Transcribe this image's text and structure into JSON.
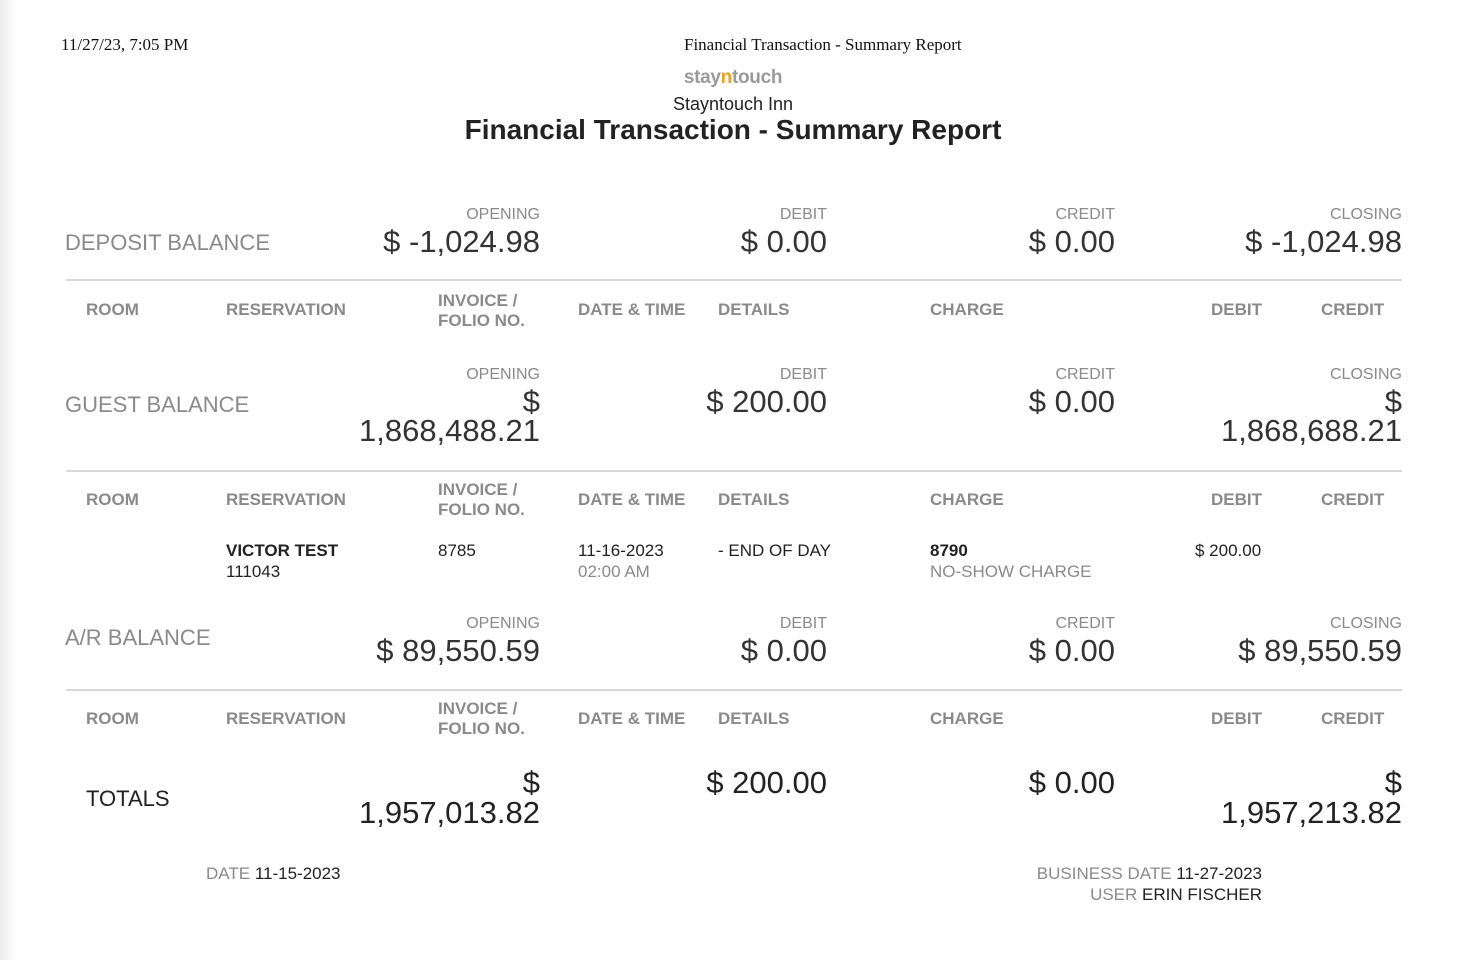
{
  "print_header": {
    "datetime": "11/27/23, 7:05 PM",
    "title": "Financial Transaction - Summary Report"
  },
  "logo": {
    "part1": "stay",
    "part2": "n",
    "part3": "touch",
    "accent_color": "#f0a01e"
  },
  "hotel_name": "Stayntouch Inn",
  "report_title": "Financial Transaction - Summary Report",
  "labels": {
    "opening": "OPENING",
    "debit": "DEBIT",
    "credit": "CREDIT",
    "closing": "CLOSING"
  },
  "columns": {
    "room": "ROOM",
    "reservation": "RESERVATION",
    "invoice_line1": "INVOICE /",
    "invoice_line2": "FOLIO NO.",
    "date_time": "DATE & TIME",
    "details": "DETAILS",
    "charge": "CHARGE",
    "debit": "DEBIT",
    "credit": "CREDIT"
  },
  "deposit": {
    "label": "DEPOSIT BALANCE",
    "opening": "$ -1,024.98",
    "debit": "$ 0.00",
    "credit": "$ 0.00",
    "closing": "$ -1,024.98"
  },
  "guest": {
    "label": "GUEST BALANCE",
    "opening_l1": "$",
    "opening_l2": "1,868,488.21",
    "debit": "$ 200.00",
    "credit": "$ 0.00",
    "closing_l1": "$",
    "closing_l2": "1,868,688.21",
    "rows": [
      {
        "room": "",
        "reservation_name": "VICTOR TEST",
        "reservation_no": "111043",
        "invoice": "8785",
        "date": "11-16-2023",
        "time": "02:00 AM",
        "details": "- END OF DAY",
        "charge_code": "8790",
        "charge_name": "NO-SHOW CHARGE",
        "debit": "$ 200.00",
        "credit": ""
      }
    ]
  },
  "ar": {
    "label": "A/R BALANCE",
    "opening": "$ 89,550.59",
    "debit": "$ 0.00",
    "credit": "$ 0.00",
    "closing": "$ 89,550.59"
  },
  "totals": {
    "label": "TOTALS",
    "opening_l1": "$",
    "opening_l2": "1,957,013.82",
    "debit": "$ 200.00",
    "credit": "$ 0.00",
    "closing_l1": "$",
    "closing_l2": "1,957,213.82"
  },
  "footer": {
    "date_label": "DATE",
    "date_value": "11-15-2023",
    "business_date_label": "BUSINESS DATE",
    "business_date_value": "11-27-2023",
    "user_label": "USER",
    "user_value": "ERIN FISCHER"
  }
}
